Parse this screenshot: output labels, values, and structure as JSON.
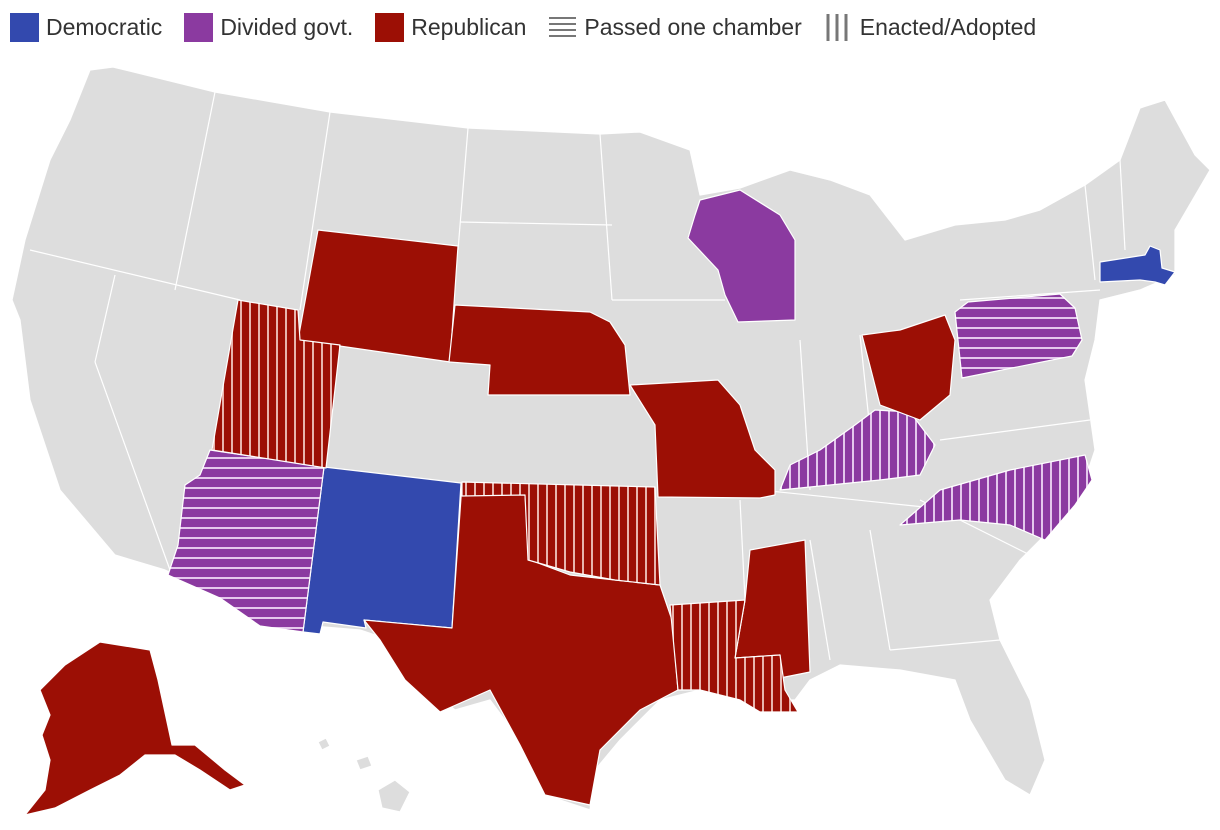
{
  "legend": [
    {
      "id": "dem",
      "label": "Democratic",
      "type": "solid",
      "color": "#3349ae"
    },
    {
      "id": "div",
      "label": "Divided govt.",
      "type": "solid",
      "color": "#8b3aa0"
    },
    {
      "id": "rep",
      "label": "Republican",
      "type": "solid",
      "color": "#9c0f05"
    },
    {
      "id": "one",
      "label": "Passed one chamber",
      "type": "horizontal-lines",
      "color": "#777777"
    },
    {
      "id": "enact",
      "label": "Enacted/Adopted",
      "type": "vertical-lines",
      "color": "#777777"
    }
  ],
  "colors": {
    "land": "#dddddd",
    "border": "#ffffff",
    "dem": "#3349ae",
    "div": "#8b3aa0",
    "rep": "#9c0f05"
  },
  "states": [
    {
      "name": "Massachusetts",
      "control": "dem",
      "status": "none"
    },
    {
      "name": "New Mexico",
      "control": "dem",
      "status": "none"
    },
    {
      "name": "Wisconsin",
      "control": "div",
      "status": "none"
    },
    {
      "name": "Pennsylvania",
      "control": "div",
      "status": "passed_one_chamber"
    },
    {
      "name": "Arizona",
      "control": "div",
      "status": "passed_one_chamber"
    },
    {
      "name": "Kentucky",
      "control": "div",
      "status": "enacted"
    },
    {
      "name": "North Carolina",
      "control": "div",
      "status": "enacted"
    },
    {
      "name": "Wyoming",
      "control": "rep",
      "status": "none"
    },
    {
      "name": "Nebraska",
      "control": "rep",
      "status": "none"
    },
    {
      "name": "Missouri",
      "control": "rep",
      "status": "none"
    },
    {
      "name": "Ohio",
      "control": "rep",
      "status": "none"
    },
    {
      "name": "Texas",
      "control": "rep",
      "status": "none"
    },
    {
      "name": "Mississippi",
      "control": "rep",
      "status": "none"
    },
    {
      "name": "Alaska",
      "control": "rep",
      "status": "none"
    },
    {
      "name": "Utah",
      "control": "rep",
      "status": "enacted"
    },
    {
      "name": "Oklahoma",
      "control": "rep",
      "status": "enacted"
    },
    {
      "name": "Louisiana",
      "control": "rep",
      "status": "enacted"
    }
  ]
}
